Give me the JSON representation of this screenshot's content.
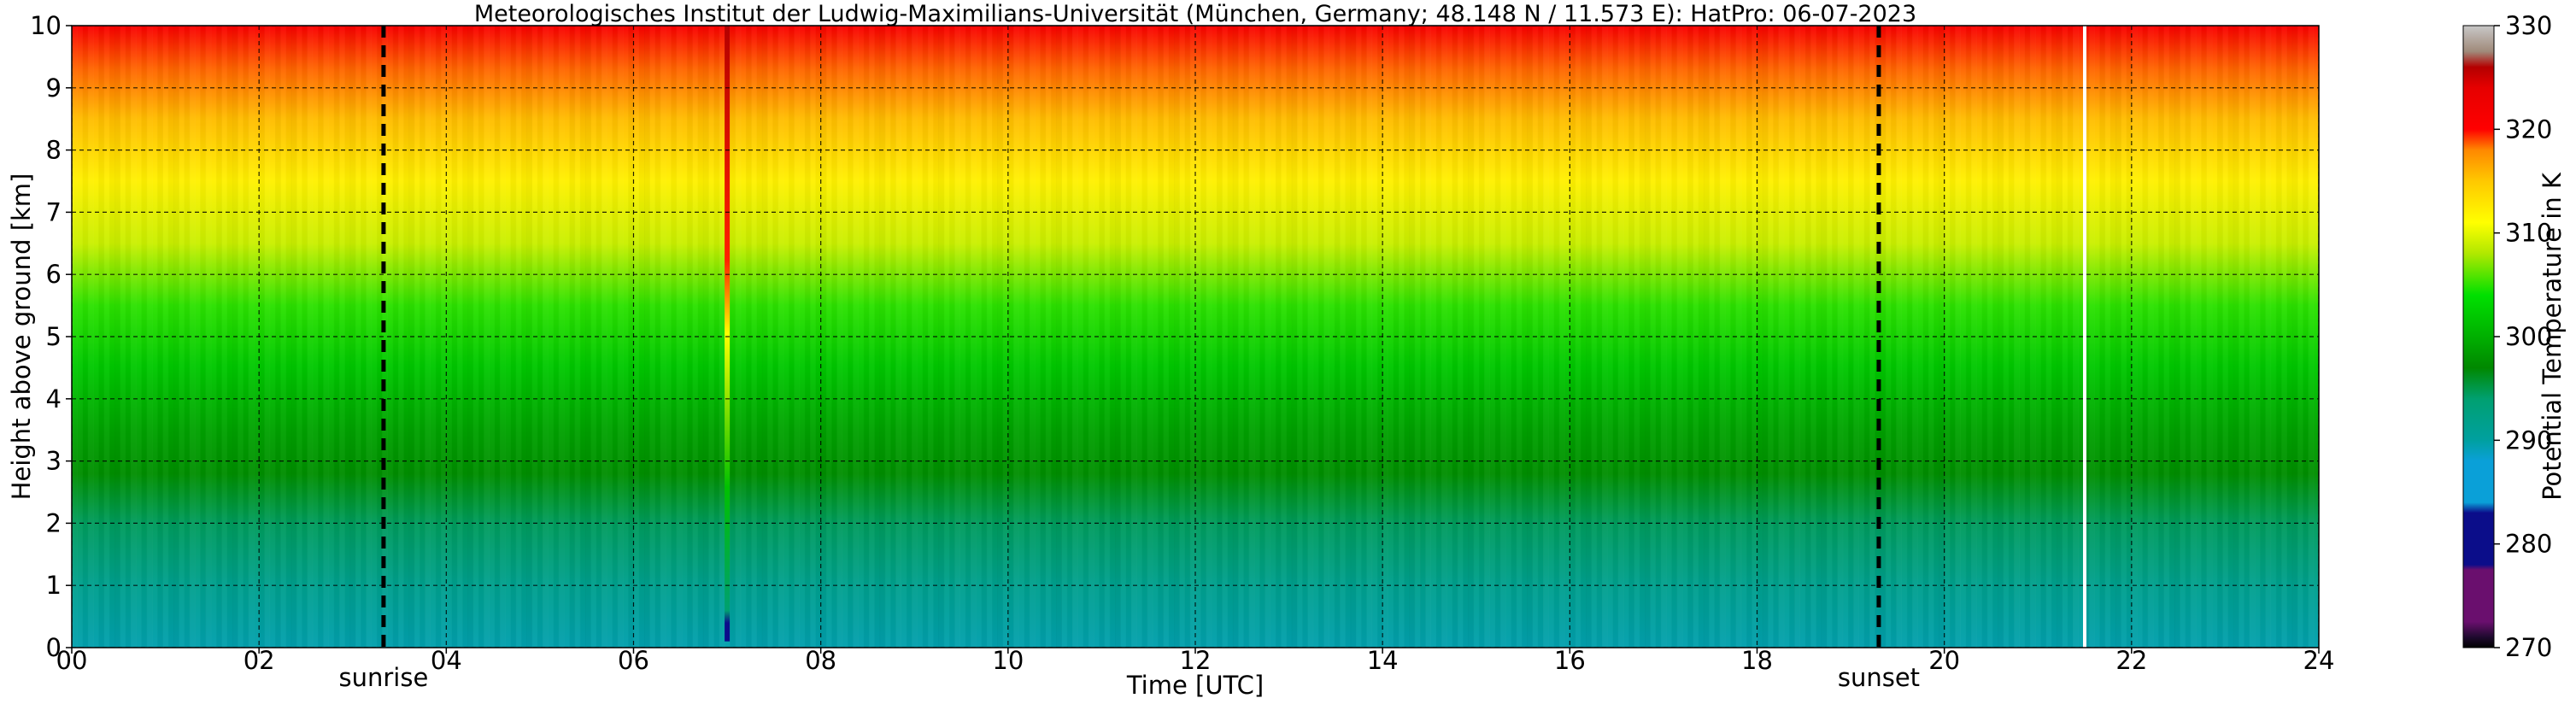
{
  "chart_data": {
    "type": "heatmap",
    "title": "Meteorologisches Institut der Ludwig-Maximilians-Universität (München, Germany; 48.148 N / 11.573 E):    HatPro: 06-07-2023",
    "xlabel": "Time [UTC]",
    "ylabel": "Height above ground [km]",
    "xlim": [
      0,
      24
    ],
    "ylim": [
      0,
      10
    ],
    "x_ticks": [
      "00",
      "02",
      "04",
      "06",
      "08",
      "10",
      "12",
      "14",
      "16",
      "18",
      "20",
      "22",
      "24"
    ],
    "y_ticks": [
      "0",
      "1",
      "2",
      "3",
      "4",
      "5",
      "6",
      "7",
      "8",
      "9",
      "10"
    ],
    "grid": true,
    "colorbar": {
      "label": "Potential Temperature in K",
      "range": [
        270,
        330
      ],
      "ticks": [
        "270",
        "280",
        "290",
        "300",
        "310",
        "320",
        "330"
      ],
      "colors": [
        {
          "value": 270,
          "color": "#000000"
        },
        {
          "value": 271,
          "color": "#1e0a2e"
        },
        {
          "value": 272.5,
          "color": "#6a0f6e"
        },
        {
          "value": 277.5,
          "color": "#6a0f6e"
        },
        {
          "value": 278,
          "color": "#0b0d8a"
        },
        {
          "value": 283,
          "color": "#0b0d8a"
        },
        {
          "value": 284,
          "color": "#0aa0d8"
        },
        {
          "value": 288,
          "color": "#0aa0d8"
        },
        {
          "value": 290,
          "color": "#00a0a0"
        },
        {
          "value": 294,
          "color": "#00a070"
        },
        {
          "value": 297,
          "color": "#008800"
        },
        {
          "value": 300,
          "color": "#00b000"
        },
        {
          "value": 304,
          "color": "#00e000"
        },
        {
          "value": 308,
          "color": "#b0e800"
        },
        {
          "value": 311,
          "color": "#ffff00"
        },
        {
          "value": 315,
          "color": "#ffc800"
        },
        {
          "value": 318,
          "color": "#ff8800"
        },
        {
          "value": 320,
          "color": "#ff0000"
        },
        {
          "value": 324,
          "color": "#e60000"
        },
        {
          "value": 326,
          "color": "#b40000"
        },
        {
          "value": 327.5,
          "color": "#a08a7a"
        },
        {
          "value": 330,
          "color": "#c8c8c8"
        }
      ]
    },
    "profile_theta": [
      {
        "height_km": 0.0,
        "theta_K": 289.5
      },
      {
        "height_km": 1.0,
        "theta_K": 291.5
      },
      {
        "height_km": 2.0,
        "theta_K": 294.5
      },
      {
        "height_km": 2.8,
        "theta_K": 297.5
      },
      {
        "height_km": 3.5,
        "theta_K": 299.0
      },
      {
        "height_km": 4.5,
        "theta_K": 302.0
      },
      {
        "height_km": 5.5,
        "theta_K": 305.0
      },
      {
        "height_km": 6.5,
        "theta_K": 309.0
      },
      {
        "height_km": 7.5,
        "theta_K": 312.0
      },
      {
        "height_km": 8.5,
        "theta_K": 315.5
      },
      {
        "height_km": 9.3,
        "theta_K": 318.5
      },
      {
        "height_km": 10.0,
        "theta_K": 321.0
      }
    ],
    "annotations": [
      {
        "label": "sunrise",
        "time_utc": 3.33,
        "style": "dashed-black"
      },
      {
        "label": "sunset",
        "time_utc": 19.3,
        "style": "dashed-black"
      }
    ],
    "data_gaps_utc": [
      21.5
    ],
    "notable_features": [
      {
        "description": "vertical warm spike",
        "time_utc": 7.0,
        "height_range_km": [
          0.1,
          10
        ]
      }
    ]
  }
}
